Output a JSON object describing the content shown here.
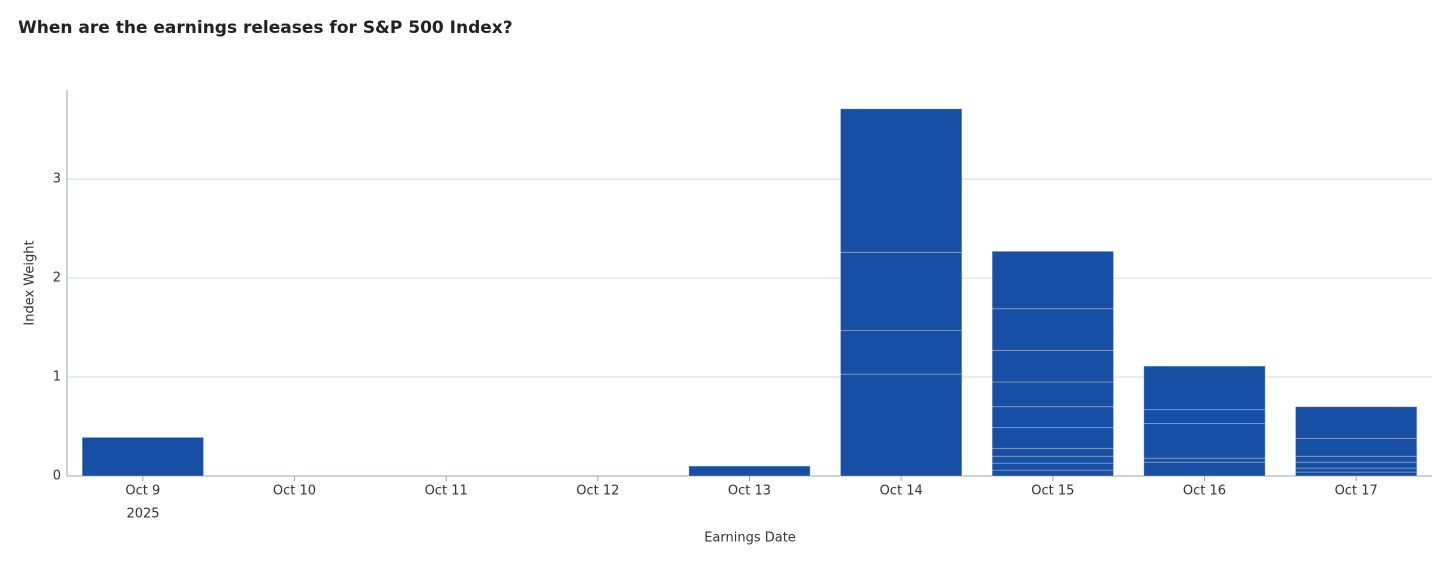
{
  "chart_data": {
    "type": "stacked_bar",
    "title": "When are the earnings releases for S&P 500 Index?",
    "xlabel": "Earnings Date",
    "ylabel": "Index Weight",
    "x_year_label": "2025",
    "categories": [
      "Oct 9",
      "Oct 10",
      "Oct 11",
      "Oct 12",
      "Oct 13",
      "Oct 14",
      "Oct 15",
      "Oct 16",
      "Oct 17"
    ],
    "values": [
      [
        0.39
      ],
      [],
      [],
      [],
      [
        0.1
      ],
      [
        1.03,
        0.44,
        0.79,
        1.45
      ],
      [
        0.06,
        0.07,
        0.07,
        0.08,
        0.21,
        0.21,
        0.25,
        0.32,
        0.42,
        0.58
      ],
      [
        0.14,
        0.04,
        0.35,
        0.14,
        0.44
      ],
      [
        0.04,
        0.04,
        0.06,
        0.06,
        0.18,
        0.32
      ]
    ],
    "color": "#174fa4",
    "ylim": [
      0,
      3.9
    ],
    "yticks": [
      0,
      1,
      2,
      3
    ],
    "grid": true
  }
}
